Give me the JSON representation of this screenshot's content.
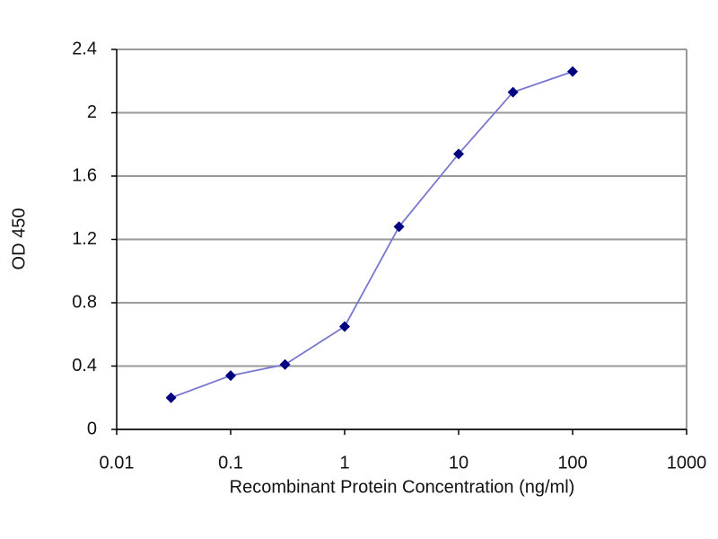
{
  "chart_data": {
    "type": "line",
    "x_label": "Recombinant Protein Concentration (ng/ml)",
    "y_label": "OD 450",
    "x": [
      0.03,
      0.1,
      0.3,
      1,
      3,
      10,
      30,
      100
    ],
    "values": [
      0.2,
      0.34,
      0.41,
      0.65,
      1.28,
      1.74,
      2.13,
      2.26
    ],
    "color": "#7878d0",
    "marker_color": "#000080",
    "xscale": "log",
    "xlim": [
      0.01,
      1000
    ],
    "xticks": [
      0.01,
      0.1,
      1,
      10,
      100,
      1000
    ],
    "ylim": [
      0,
      2.4
    ],
    "yticks": [
      0,
      0.4,
      0.8,
      1.2,
      1.6,
      2,
      2.4
    ],
    "grid": true
  }
}
